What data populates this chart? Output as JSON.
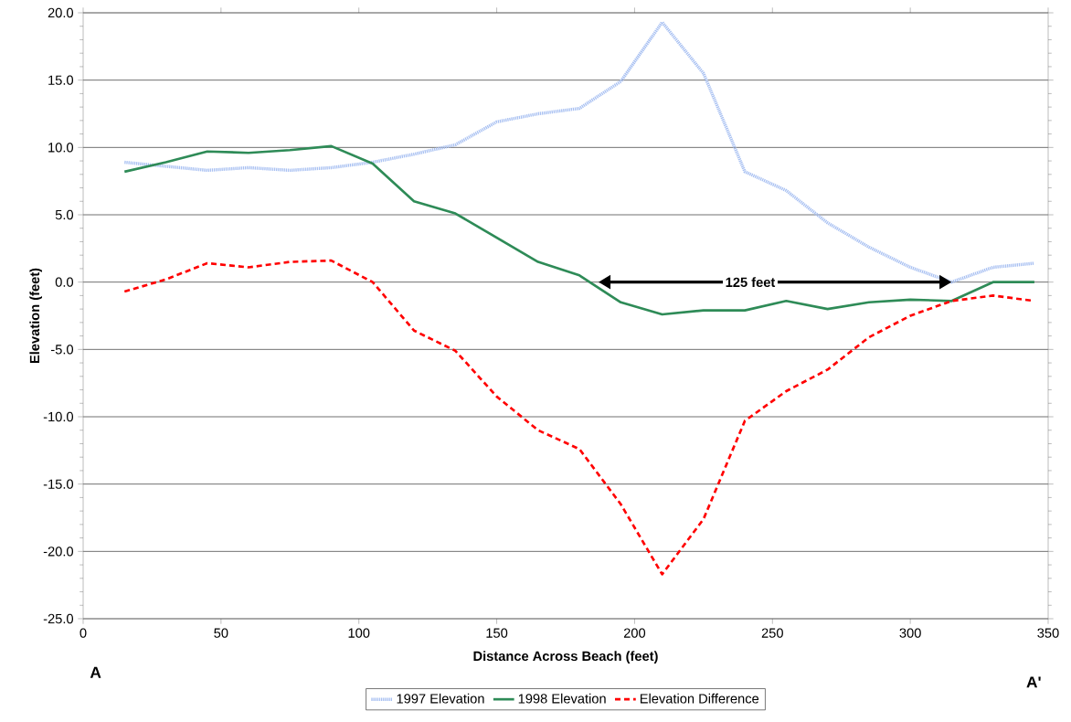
{
  "chart_data": {
    "type": "line",
    "xlabel": "Distance Across Beach (feet)",
    "ylabel": "Elevation (feet)",
    "x": [
      15,
      30,
      45,
      60,
      75,
      90,
      105,
      120,
      135,
      150,
      165,
      180,
      195,
      210,
      225,
      240,
      255,
      270,
      285,
      300,
      315,
      330,
      345
    ],
    "series": [
      {
        "name": "1997 Elevation",
        "color": "#a9c1f2",
        "line_style": "dotted",
        "values": [
          8.9,
          8.6,
          8.3,
          8.5,
          8.3,
          8.5,
          8.9,
          9.5,
          10.2,
          11.9,
          12.5,
          12.9,
          14.9,
          19.3,
          15.5,
          8.2,
          6.8,
          4.4,
          2.6,
          1.1,
          0.0,
          1.1,
          1.4
        ]
      },
      {
        "name": "1998 Elevation",
        "color": "#2e8b57",
        "line_style": "solid",
        "values": [
          8.2,
          8.9,
          9.7,
          9.6,
          9.8,
          10.1,
          8.8,
          6.0,
          5.1,
          3.3,
          1.5,
          0.5,
          -1.5,
          -2.4,
          -2.1,
          -2.1,
          -1.4,
          -2.0,
          -1.5,
          -1.3,
          -1.4,
          0.0,
          0.0
        ]
      },
      {
        "name": "Elevation Difference",
        "color": "#ff0000",
        "line_style": "dashed",
        "values": [
          -0.7,
          0.2,
          1.4,
          1.1,
          1.5,
          1.6,
          0.0,
          -3.6,
          -5.1,
          -8.5,
          -11.0,
          -12.4,
          -16.5,
          -21.7,
          -17.6,
          -10.3,
          -8.1,
          -6.5,
          -4.1,
          -2.5,
          -1.4,
          -1.0,
          -1.4
        ]
      }
    ],
    "xlim": [
      0,
      350
    ],
    "xticks": [
      0,
      50,
      100,
      150,
      200,
      250,
      300,
      350
    ],
    "ylim": [
      -25,
      20
    ],
    "yticks": [
      {
        "value": -25,
        "label": "-25.0"
      },
      {
        "value": -20,
        "label": "-20.0"
      },
      {
        "value": -15,
        "label": "-15.0"
      },
      {
        "value": -10,
        "label": "-10.0"
      },
      {
        "value": -5,
        "label": "-5.0"
      },
      {
        "value": 0,
        "label": "0.0"
      },
      {
        "value": 5,
        "label": "5.0"
      },
      {
        "value": 10,
        "label": "10.0"
      },
      {
        "value": 15,
        "label": "15.0"
      },
      {
        "value": 20,
        "label": "20.0"
      }
    ],
    "grid": "y",
    "legend": "bottom",
    "annotations": [
      "125 feet",
      "A",
      "A'"
    ]
  }
}
